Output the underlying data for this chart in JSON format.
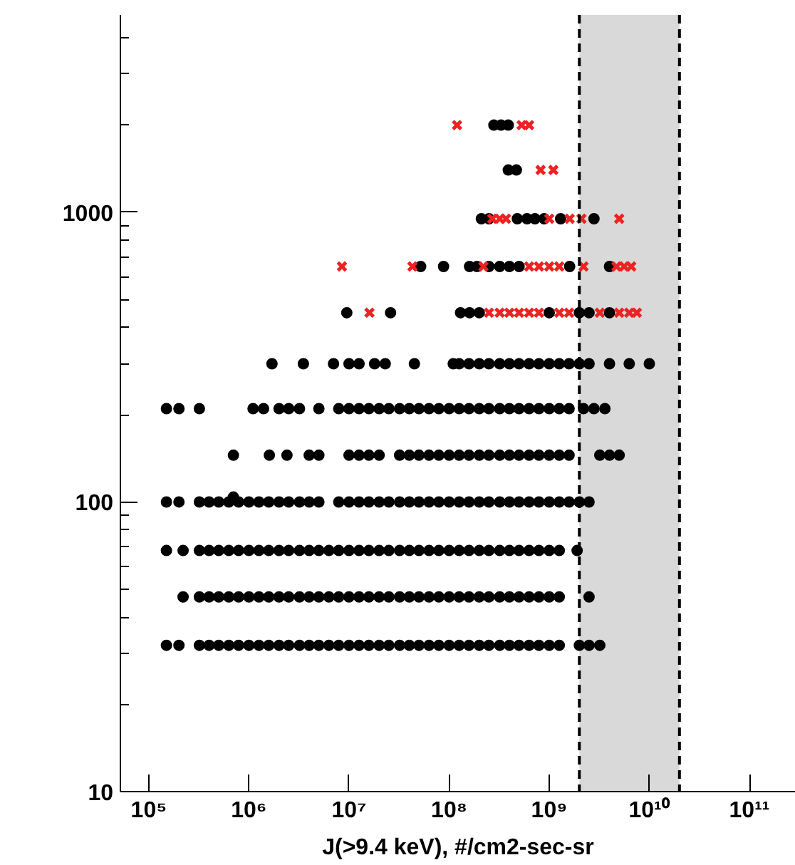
{
  "chart_data": {
    "type": "scatter",
    "xlabel": "J(>9.4 keV), #/cm2-sec-sr",
    "log": "xy",
    "xlim": [
      52000,
      290000000000
    ],
    "ylim": [
      10,
      4800
    ],
    "xticks": [
      {
        "value": 100000,
        "label": "10⁵"
      },
      {
        "value": 1000000,
        "label": "10⁶"
      },
      {
        "value": 10000000,
        "label": "10⁷"
      },
      {
        "value": 100000000,
        "label": "10⁸"
      },
      {
        "value": 1000000000,
        "label": "10⁹"
      },
      {
        "value": 10000000000,
        "label": "10¹⁰"
      },
      {
        "value": 100000000000,
        "label": "10¹¹"
      }
    ],
    "yticks": [
      10,
      100,
      1000
    ],
    "bands": [
      {
        "axis": "x",
        "from": 2000000000,
        "to": 20000000000,
        "color": "#d9d9d9"
      }
    ],
    "ref_lines": [
      {
        "axis": "x",
        "value": 2000000000,
        "color": "#000000",
        "line_style": "dashed"
      },
      {
        "axis": "x",
        "value": 20000000000,
        "color": "#000000",
        "line_style": "dashed"
      }
    ],
    "series": [
      {
        "color": "#000000",
        "marker": "circle",
        "x": [
          150000.0,
          200000.0,
          320000.0,
          400000.0,
          500000.0,
          630000.0,
          790000.0,
          1000000.0,
          1260000.0,
          1580000.0,
          2000000.0,
          2500000.0,
          3200000.0,
          4000000.0,
          5000000.0,
          6300000.0,
          7900000.0,
          10000000.0,
          12600000.0,
          15800000.0,
          20000000.0,
          25000000.0,
          32000000.0,
          40000000.0,
          50000000.0,
          63000000.0,
          79000000.0,
          100000000.0,
          126000000.0,
          158000000.0,
          200000000.0,
          250000000.0,
          320000000.0,
          400000000.0,
          500000000.0,
          630000000.0,
          790000000.0,
          1000000000.0,
          1260000000.0,
          2000000000.0,
          2500000000.0,
          3200000000.0
        ],
        "values": [
          32,
          32,
          32,
          32,
          32,
          32,
          32,
          32,
          32,
          32,
          32,
          32,
          32,
          32,
          32,
          32,
          32,
          32,
          32,
          32,
          32,
          32,
          32,
          32,
          32,
          32,
          32,
          32,
          32,
          32,
          32,
          32,
          32,
          32,
          32,
          32,
          32,
          32,
          32,
          32,
          32,
          32
        ]
      },
      {
        "color": "#000000",
        "marker": "circle",
        "x": [
          220000.0,
          320000.0,
          400000.0,
          500000.0,
          630000.0,
          790000.0,
          1000000.0,
          1260000.0,
          1580000.0,
          2000000.0,
          2500000.0,
          3200000.0,
          4000000.0,
          5000000.0,
          6300000.0,
          7900000.0,
          10000000.0,
          12600000.0,
          15800000.0,
          20000000.0,
          25000000.0,
          32000000.0,
          40000000.0,
          50000000.0,
          63000000.0,
          79000000.0,
          100000000.0,
          126000000.0,
          158000000.0,
          200000000.0,
          250000000.0,
          320000000.0,
          400000000.0,
          500000000.0,
          630000000.0,
          790000000.0,
          1000000000.0,
          1260000000.0,
          2500000000.0
        ],
        "values": [
          47,
          47,
          47,
          47,
          47,
          47,
          47,
          47,
          47,
          47,
          47,
          47,
          47,
          47,
          47,
          47,
          47,
          47,
          47,
          47,
          47,
          47,
          47,
          47,
          47,
          47,
          47,
          47,
          47,
          47,
          47,
          47,
          47,
          47,
          47,
          47,
          47,
          47,
          47
        ]
      },
      {
        "color": "#000000",
        "marker": "circle",
        "x": [
          150000.0,
          220000.0,
          320000.0,
          400000.0,
          500000.0,
          630000.0,
          790000.0,
          1000000.0,
          1260000.0,
          1580000.0,
          2000000.0,
          2500000.0,
          3200000.0,
          4000000.0,
          5000000.0,
          6300000.0,
          7900000.0,
          10000000.0,
          12600000.0,
          15800000.0,
          20000000.0,
          25000000.0,
          32000000.0,
          40000000.0,
          50000000.0,
          63000000.0,
          79000000.0,
          100000000.0,
          126000000.0,
          158000000.0,
          200000000.0,
          250000000.0,
          320000000.0,
          400000000.0,
          500000000.0,
          630000000.0,
          790000000.0,
          1000000000.0,
          1260000000.0,
          1900000000.0
        ],
        "values": [
          68,
          68,
          68,
          68,
          68,
          68,
          68,
          68,
          68,
          68,
          68,
          68,
          68,
          68,
          68,
          68,
          68,
          68,
          68,
          68,
          68,
          68,
          68,
          68,
          68,
          68,
          68,
          68,
          68,
          68,
          68,
          68,
          68,
          68,
          68,
          68,
          68,
          68,
          68,
          68
        ]
      },
      {
        "color": "#000000",
        "marker": "circle",
        "x": [
          150000.0,
          200000.0,
          320000.0,
          400000.0,
          500000.0,
          630000.0,
          790000.0,
          1000000.0,
          1260000.0,
          1580000.0,
          2000000.0,
          2500000.0,
          3200000.0,
          4000000.0,
          5000000.0,
          7900000.0,
          10000000.0,
          12600000.0,
          15800000.0,
          20000000.0,
          25000000.0,
          32000000.0,
          40000000.0,
          50000000.0,
          63000000.0,
          79000000.0,
          100000000.0,
          126000000.0,
          158000000.0,
          200000000.0,
          250000000.0,
          320000000.0,
          400000000.0,
          500000000.0,
          630000000.0,
          790000000.0,
          1000000000.0,
          1260000000.0,
          1580000000.0,
          2000000000.0,
          2500000000.0,
          700000.0
        ],
        "values": [
          100,
          100,
          100,
          100,
          100,
          100,
          100,
          100,
          100,
          100,
          100,
          100,
          100,
          100,
          100,
          100,
          100,
          100,
          100,
          100,
          100,
          100,
          100,
          100,
          100,
          100,
          100,
          100,
          100,
          100,
          100,
          100,
          100,
          100,
          100,
          100,
          100,
          100,
          100,
          100,
          100,
          104
        ]
      },
      {
        "color": "#000000",
        "marker": "circle",
        "x": [
          700000.0,
          1600000.0,
          2400000.0,
          4000000.0,
          5000000.0,
          10000000.0,
          12600000.0,
          15800000.0,
          20000000.0,
          32000000.0,
          40000000.0,
          50000000.0,
          63000000.0,
          79000000.0,
          100000000.0,
          126000000.0,
          158000000.0,
          200000000.0,
          250000000.0,
          320000000.0,
          400000000.0,
          500000000.0,
          630000000.0,
          790000000.0,
          1000000000.0,
          1260000000.0,
          1580000000.0,
          3200000000.0,
          4000000000.0,
          5000000000.0
        ],
        "values": [
          145,
          145,
          145,
          145,
          145,
          145,
          145,
          145,
          145,
          145,
          145,
          145,
          145,
          145,
          145,
          145,
          145,
          145,
          145,
          145,
          145,
          145,
          145,
          145,
          145,
          145,
          145,
          145,
          145,
          145
        ]
      },
      {
        "color": "#000000",
        "marker": "circle",
        "x": [
          150000.0,
          200000.0,
          320000.0,
          1100000.0,
          1400000.0,
          2000000.0,
          2500000.0,
          3200000.0,
          5000000.0,
          7900000.0,
          10000000.0,
          12600000.0,
          15800000.0,
          20000000.0,
          25000000.0,
          32000000.0,
          40000000.0,
          50000000.0,
          63000000.0,
          79000000.0,
          100000000.0,
          126000000.0,
          158000000.0,
          200000000.0,
          250000000.0,
          320000000.0,
          400000000.0,
          500000000.0,
          630000000.0,
          790000000.0,
          1000000000.0,
          1260000000.0,
          1580000000.0,
          2200000000.0,
          2800000000.0,
          3600000000.0
        ],
        "values": [
          210,
          210,
          210,
          210,
          210,
          210,
          210,
          210,
          210,
          210,
          210,
          210,
          210,
          210,
          210,
          210,
          210,
          210,
          210,
          210,
          210,
          210,
          210,
          210,
          210,
          210,
          210,
          210,
          210,
          210,
          210,
          210,
          210,
          210,
          210,
          210
        ]
      },
      {
        "color": "#000000",
        "marker": "circle",
        "x": [
          1700000.0,
          3500000.0,
          7000000.0,
          10000000.0,
          12600000.0,
          18000000.0,
          23000000.0,
          45000000.0,
          110000000.0,
          126000000.0,
          158000000.0,
          200000000.0,
          250000000.0,
          320000000.0,
          400000000.0,
          500000000.0,
          630000000.0,
          790000000.0,
          1000000000.0,
          1260000000.0,
          1580000000.0,
          2000000000.0,
          2500000000.0,
          4000000000.0,
          6300000000.0,
          10000000000.0
        ],
        "values": [
          300,
          300,
          300,
          300,
          300,
          300,
          300,
          300,
          300,
          300,
          300,
          300,
          300,
          300,
          300,
          300,
          300,
          300,
          300,
          300,
          300,
          300,
          300,
          300,
          300,
          300
        ]
      },
      {
        "color": "#000000",
        "marker": "circle",
        "x": [
          9500000.0,
          26000000.0,
          130000000.0,
          160000000.0,
          200000000.0,
          1000000000.0,
          2000000000.0,
          2500000000.0,
          4000000000.0
        ],
        "values": [
          450,
          450,
          450,
          450,
          450,
          450,
          450,
          450,
          450
        ]
      },
      {
        "color": "#000000",
        "marker": "circle",
        "x": [
          52000000.0,
          88000000.0,
          160000000.0,
          190000000.0,
          250000000.0,
          320000000.0,
          400000000.0,
          500000000.0,
          1600000000.0,
          4000000000.0
        ],
        "values": [
          650,
          650,
          650,
          650,
          650,
          650,
          650,
          650,
          650,
          650
        ]
      },
      {
        "color": "#000000",
        "marker": "circle",
        "x": [
          210000000.0,
          250000000.0,
          480000000.0,
          600000000.0,
          720000000.0,
          890000000.0,
          1300000000.0,
          2800000000.0
        ],
        "values": [
          950,
          950,
          950,
          950,
          950,
          950,
          950,
          950
        ]
      },
      {
        "color": "#000000",
        "marker": "circle",
        "x": [
          390000000.0,
          470000000.0
        ],
        "values": [
          1400,
          1400
        ]
      },
      {
        "color": "#000000",
        "marker": "circle",
        "x": [
          280000000.0,
          330000000.0,
          390000000.0
        ],
        "values": [
          2000,
          2000,
          2000
        ]
      },
      {
        "color": "#ee2222",
        "marker": "cross",
        "x": [
          16000000.0,
          250000000.0,
          320000000.0,
          400000000.0,
          500000000.0,
          630000000.0,
          790000000.0,
          1260000000.0,
          1580000000.0,
          3200000000.0,
          5000000000.0,
          6300000000.0,
          7500000000.0
        ],
        "values": [
          450,
          450,
          450,
          450,
          450,
          450,
          450,
          450,
          450,
          450,
          450,
          450,
          450
        ]
      },
      {
        "color": "#ee2222",
        "marker": "cross",
        "x": [
          8500000.0,
          43000000.0,
          220000000.0,
          630000000.0,
          790000000.0,
          1000000000.0,
          1260000000.0,
          2200000000.0,
          4700000000.0,
          5600000000.0,
          6600000000.0
        ],
        "values": [
          650,
          650,
          650,
          650,
          650,
          650,
          650,
          650,
          650,
          650,
          650
        ]
      },
      {
        "color": "#ee2222",
        "marker": "cross",
        "x": [
          270000000.0,
          320000000.0,
          370000000.0,
          1000000000.0,
          1600000000.0,
          2100000000.0,
          5000000000.0
        ],
        "values": [
          950,
          950,
          950,
          950,
          950,
          950,
          950
        ]
      },
      {
        "color": "#ee2222",
        "marker": "cross",
        "x": [
          820000000.0,
          1100000000.0
        ],
        "values": [
          1400,
          1400
        ]
      },
      {
        "color": "#ee2222",
        "marker": "cross",
        "x": [
          120000000.0,
          530000000.0,
          630000000.0
        ],
        "values": [
          2000,
          2000,
          2000
        ]
      }
    ]
  }
}
